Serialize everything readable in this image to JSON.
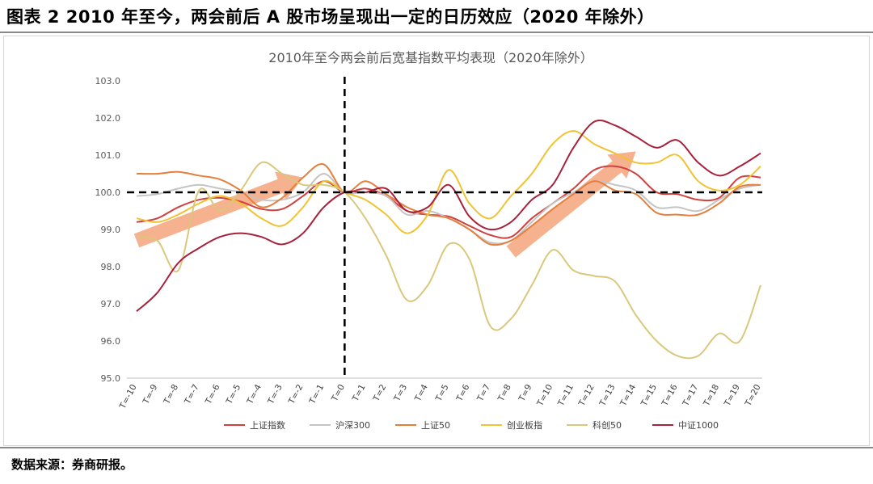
{
  "figure": {
    "title": "图表 2 2010 年至今，两会前后 A 股市场呈现出一定的日历效应（2020 年除外）",
    "source": "数据来源：券商研报。"
  },
  "chart_data": {
    "type": "line",
    "title": "2010年至今两会前后宽基指数平均表现（2020年除外）",
    "xlabel": "",
    "ylabel": "",
    "ylim": [
      95.0,
      103.0
    ],
    "y_ticks": [
      "95.0",
      "96.0",
      "97.0",
      "98.0",
      "99.0",
      "100.0",
      "101.0",
      "102.0",
      "103.0"
    ],
    "grid": false,
    "legend_position": "bottom",
    "categories": [
      "T=-10",
      "T=-9",
      "T=-8",
      "T=-7",
      "T=-6",
      "T=-5",
      "T=-4",
      "T=-3",
      "T=-2",
      "T=-1",
      "T=0",
      "T=1",
      "T=2",
      "T=3",
      "T=4",
      "T=5",
      "T=6",
      "T=7",
      "T=8",
      "T=9",
      "T=10",
      "T=11",
      "T=12",
      "T=13",
      "T=14",
      "T=15",
      "T=16",
      "T=17",
      "T=18",
      "T=19",
      "T=20"
    ],
    "reference_lines": [
      {
        "axis": "y",
        "value": 100.0,
        "style": "dashed"
      },
      {
        "axis": "x",
        "value": "T=0",
        "style": "dashed"
      }
    ],
    "annotations": [
      {
        "type": "arrow",
        "from": [
          "T=-10",
          98.7
        ],
        "to": [
          "T=-2",
          100.4
        ],
        "color": "#f5a37a",
        "meaning": "upward trend before T=0"
      },
      {
        "type": "arrow",
        "from": [
          "T=8",
          98.4
        ],
        "to": [
          "T=14",
          101.1
        ],
        "color": "#f5a37a",
        "meaning": "upward trend after T=8"
      }
    ],
    "series": [
      {
        "name": "上证指数",
        "color": "#d13f3f",
        "values": [
          99.2,
          99.3,
          99.6,
          99.8,
          99.85,
          99.75,
          99.55,
          99.55,
          99.9,
          100.3,
          100.0,
          100.1,
          99.9,
          99.5,
          99.4,
          99.35,
          99.1,
          98.85,
          98.8,
          99.3,
          99.7,
          100.1,
          100.6,
          100.7,
          100.5,
          100.0,
          99.95,
          99.8,
          99.85,
          100.4,
          100.4
        ]
      },
      {
        "name": "沪深300",
        "color": "#c4c4c4",
        "values": [
          99.9,
          99.95,
          100.1,
          100.2,
          100.1,
          100.0,
          99.8,
          99.8,
          100.0,
          100.5,
          100.0,
          100.0,
          99.9,
          99.4,
          99.5,
          99.3,
          99.0,
          98.65,
          98.7,
          99.2,
          99.7,
          100.0,
          100.3,
          100.2,
          100.05,
          99.6,
          99.6,
          99.5,
          99.8,
          100.1,
          100.2
        ]
      },
      {
        "name": "上证50",
        "color": "#e67f3c",
        "values": [
          100.5,
          100.5,
          100.55,
          100.45,
          100.35,
          100.05,
          99.6,
          99.85,
          100.4,
          100.75,
          100.0,
          100.3,
          99.95,
          99.6,
          99.4,
          99.3,
          99.0,
          98.6,
          98.7,
          99.1,
          99.55,
          99.95,
          100.3,
          100.05,
          99.95,
          99.45,
          99.4,
          99.4,
          99.7,
          100.15,
          100.2
        ]
      },
      {
        "name": "创业板指",
        "color": "#f1c232",
        "values": [
          99.3,
          99.2,
          99.4,
          99.7,
          99.9,
          99.7,
          99.3,
          99.1,
          99.6,
          100.3,
          100.0,
          99.8,
          99.4,
          98.9,
          99.4,
          100.6,
          99.7,
          99.3,
          99.9,
          100.5,
          101.3,
          101.65,
          101.3,
          101.05,
          100.8,
          100.8,
          101.0,
          100.3,
          100.05,
          100.2,
          100.7
        ]
      },
      {
        "name": "科创50",
        "color": "#d9c87c",
        "values": [
          98.8,
          98.7,
          97.9,
          100.05,
          99.5,
          100.05,
          100.8,
          100.5,
          100.2,
          100.2,
          100.0,
          99.3,
          98.3,
          97.1,
          97.5,
          98.6,
          98.2,
          96.4,
          96.6,
          97.5,
          98.45,
          97.9,
          97.75,
          97.6,
          96.7,
          96.0,
          95.6,
          95.6,
          96.2,
          96.0,
          97.5
        ]
      },
      {
        "name": "中证1000",
        "color": "#a8213c",
        "values": [
          96.8,
          97.3,
          98.1,
          98.5,
          98.8,
          98.9,
          98.8,
          98.6,
          98.9,
          99.6,
          100.0,
          100.0,
          100.1,
          99.5,
          99.6,
          100.2,
          99.35,
          99.0,
          99.2,
          99.8,
          100.2,
          101.2,
          101.9,
          101.8,
          101.5,
          101.2,
          101.4,
          100.8,
          100.45,
          100.7,
          101.05
        ]
      }
    ]
  }
}
